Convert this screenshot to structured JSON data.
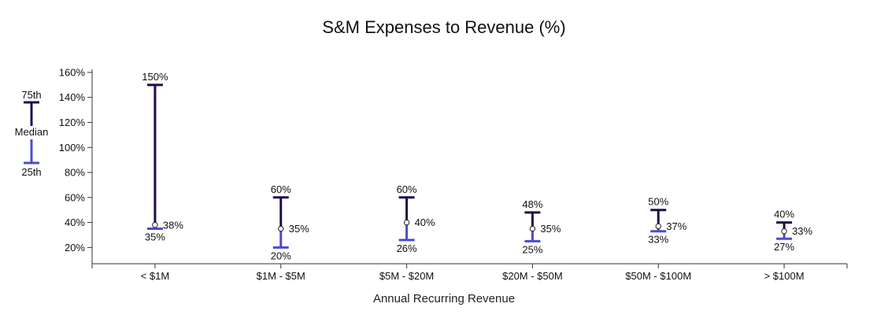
{
  "chart_data": {
    "type": "range",
    "title": "S&M Expenses to Revenue (%)",
    "xlabel": "Annual Recurring Revenue",
    "ylabel": "",
    "ylim": [
      7,
      165
    ],
    "yticks": [
      20,
      40,
      60,
      80,
      100,
      120,
      140,
      160
    ],
    "ytick_labels": [
      "20%",
      "40%",
      "60%",
      "80%",
      "100%",
      "120%",
      "140%",
      "160%"
    ],
    "categories": [
      "< $1M",
      "$1M - $5M",
      "$5M - $20M",
      "$20M - $50M",
      "$50M - $100M",
      "> $100M"
    ],
    "series": [
      {
        "name": "75th",
        "values": [
          150,
          60,
          60,
          48,
          50,
          40
        ],
        "labels": [
          "150%",
          "60%",
          "60%",
          "48%",
          "50%",
          "40%"
        ]
      },
      {
        "name": "Median",
        "values": [
          38,
          35,
          40,
          35,
          37,
          33
        ],
        "labels": [
          "38%",
          "35%",
          "40%",
          "35%",
          "37%",
          "33%"
        ]
      },
      {
        "name": "25th",
        "values": [
          35,
          20,
          26,
          25,
          33,
          27
        ],
        "labels": [
          "35%",
          "20%",
          "26%",
          "25%",
          "33%",
          "27%"
        ]
      }
    ],
    "legend": {
      "position": "left",
      "items": [
        "75th",
        "Median",
        "25th"
      ]
    },
    "colors": {
      "upper": "#1f0a4d",
      "lower": "#4c4ccc",
      "axis": "#333333"
    }
  }
}
